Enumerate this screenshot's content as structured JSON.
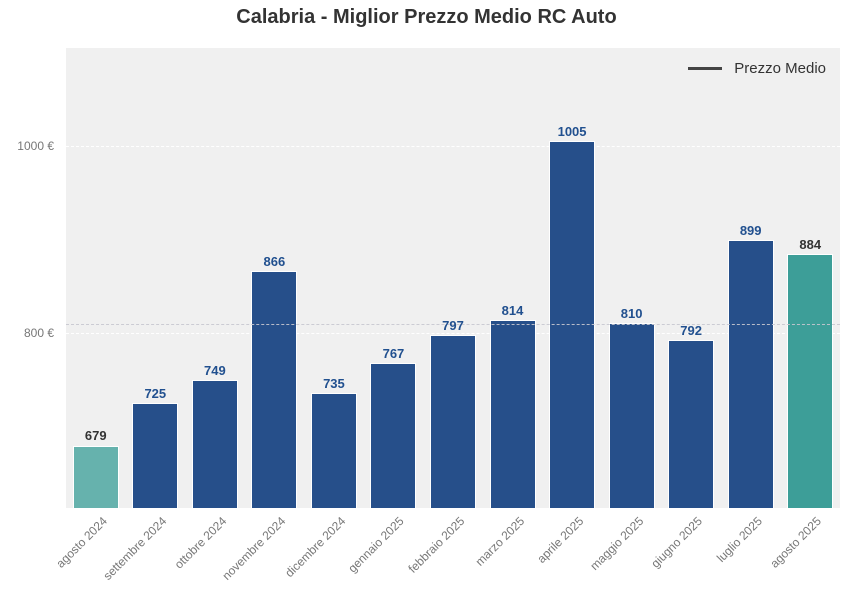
{
  "chart_data": {
    "type": "bar",
    "title": "Calabria - Miglior Prezzo Medio RC Auto",
    "xlabel": "",
    "ylabel": "",
    "categories": [
      "agosto 2024",
      "settembre 2024",
      "ottobre 2024",
      "novembre 2024",
      "dicembre 2024",
      "gennaio 2025",
      "febbraio 2025",
      "marzo 2025",
      "aprile 2025",
      "maggio 2025",
      "giugno 2025",
      "luglio 2025",
      "agosto 2025"
    ],
    "values": [
      679,
      725,
      749,
      866,
      735,
      767,
      797,
      814,
      1005,
      810,
      792,
      899,
      884
    ],
    "value_labels": [
      "679",
      "725",
      "749",
      "866",
      "735",
      "767",
      "797",
      "814",
      "1005",
      "810",
      "792",
      "899",
      "884"
    ],
    "bar_colors": [
      "#66b2ad",
      "#264f8a",
      "#264f8a",
      "#264f8a",
      "#264f8a",
      "#264f8a",
      "#264f8a",
      "#264f8a",
      "#264f8a",
      "#264f8a",
      "#264f8a",
      "#264f8a",
      "#3d9e98"
    ],
    "label_colors": [
      "#333333",
      "#21508f",
      "#21508f",
      "#21508f",
      "#21508f",
      "#21508f",
      "#21508f",
      "#21508f",
      "#21508f",
      "#21508f",
      "#21508f",
      "#21508f",
      "#333333"
    ],
    "ylim": [
      612,
      1105
    ],
    "yticks": [
      800,
      1000
    ],
    "ytick_labels": [
      "800 €",
      "1000 €"
    ],
    "grid": true,
    "mean_line": {
      "label": "Prezzo Medio",
      "value": 809.4
    },
    "legend": {
      "position": "upper right",
      "entries": [
        "Prezzo Medio"
      ]
    }
  }
}
